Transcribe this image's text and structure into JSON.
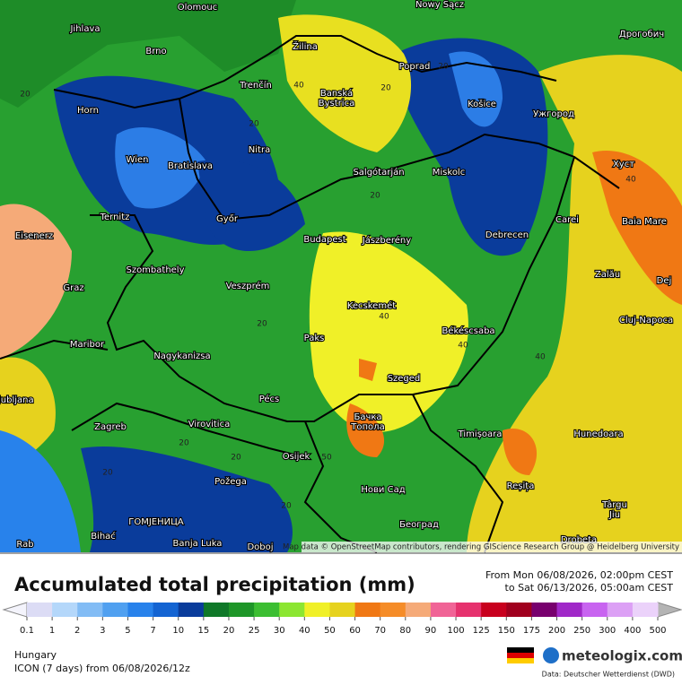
{
  "map": {
    "cities": [
      "Olomouc",
      "Nowy Sącz",
      "Jihlava",
      "Дрогобич",
      "Brno",
      "Žilina",
      "Poprad",
      "Horn",
      "Trenčín",
      "Banská",
      "Bystrica",
      "Košice",
      "Ужгород",
      "Nitra",
      "Wien",
      "Bratislava",
      "Salgótarján",
      "Miskolc",
      "Хуст",
      "Ternitz",
      "Győr",
      "Carei",
      "Baia Mare",
      "Eisenerz",
      "Budapest",
      "Jászberény",
      "Debrecen",
      "Szombathely",
      "Zalău",
      "Graz",
      "Veszprém",
      "Dej",
      "Kecskemét",
      "Cluj-Napoca",
      "Maribor",
      "Paks",
      "Békéscsaba",
      "Nagykanizsa",
      "Szeged",
      "Ljubljana",
      "Pécs",
      "Бачка",
      "Топола",
      "Zagreb",
      "Virovitica",
      "Timișoara",
      "Hunedoara",
      "Osijek",
      "Reșița",
      "Požega",
      "Нови Сад",
      "Târgu",
      "Jiu",
      "ГОМЈЕНИЦА",
      "Bihać",
      "Banja Luka",
      "Doboj",
      "Београд",
      "Drobeta",
      "Rab"
    ],
    "contour_labels": [
      "20",
      "40",
      "20",
      "20",
      "40",
      "20",
      "40",
      "40",
      "20",
      "40",
      "20",
      "20",
      "50",
      "20",
      "20",
      "20"
    ],
    "attribution": "Map data © OpenStreetMap contributors, rendering GIScience Research Group @ Heidelberg University"
  },
  "header": {
    "title": "Accumulated total precipitation (mm)",
    "from": "From Mon 06/08/2026, 02:00pm CEST",
    "to": "to Sat 06/13/2026, 05:00am CEST"
  },
  "legend": {
    "ticks": [
      0.1,
      1,
      2,
      3,
      5,
      7,
      10,
      15,
      20,
      25,
      30,
      40,
      50,
      60,
      70,
      80,
      90,
      100,
      125,
      150,
      175,
      200,
      250,
      300,
      400,
      500
    ],
    "colors": [
      "#dcdcf5",
      "#b4d7fa",
      "#82bcf5",
      "#50a0f0",
      "#2882eb",
      "#1464d2",
      "#0a3c9b",
      "#0f7828",
      "#1e9628",
      "#3cbe32",
      "#8ce632",
      "#f0f028",
      "#e6d21e",
      "#f07814",
      "#f58c28",
      "#f5aa78",
      "#f06496",
      "#e6326e",
      "#c8001e",
      "#a0001e",
      "#78006e",
      "#a028c8",
      "#c864f0",
      "#dca0f5",
      "#ebd2fa"
    ]
  },
  "footer": {
    "region": "Hungary",
    "model": "ICON (7 days)  from  06/08/2026/12z",
    "brand": "meteologix.com",
    "source": "Data: Deutscher Wetterdienst (DWD)"
  }
}
